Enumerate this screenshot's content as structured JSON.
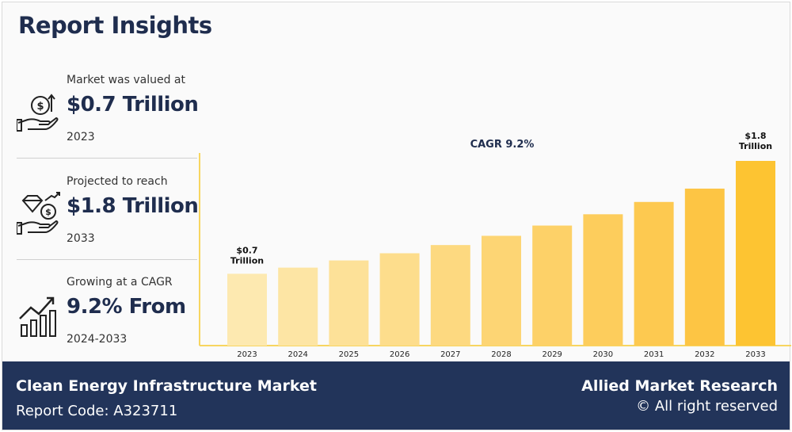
{
  "title": "Report Insights",
  "stats": [
    {
      "label": "Market was valued at",
      "value": "$0.7 Trillion",
      "year": "2023",
      "icon": "money-hand-icon"
    },
    {
      "label": "Projected to reach",
      "value": "$1.8 Trillion",
      "year": "2033",
      "icon": "diamond-coin-hand-icon"
    },
    {
      "label": "Growing at a CAGR",
      "value": "9.2% From",
      "year": "2024-2033",
      "icon": "growth-bars-icon"
    }
  ],
  "chart_data": {
    "type": "bar",
    "categories": [
      "2023",
      "2024",
      "2025",
      "2026",
      "2027",
      "2028",
      "2029",
      "2030",
      "2031",
      "2032",
      "2033"
    ],
    "values": [
      0.7,
      0.76,
      0.83,
      0.9,
      0.98,
      1.07,
      1.17,
      1.28,
      1.4,
      1.53,
      1.8
    ],
    "annotation": "CAGR 9.2%",
    "first_label": [
      "$0.7",
      "Trillion"
    ],
    "last_label": [
      "$1.8",
      "Trillion"
    ],
    "colors": [
      "#fde9b0",
      "#fde5a4",
      "#fde198",
      "#fddd8c",
      "#fdd980",
      "#fdd574",
      "#fdd168",
      "#fdcd5c",
      "#fdc950",
      "#fdc544",
      "#fdc432"
    ],
    "axis_color": "#f7d560"
  },
  "footer": {
    "market": "Clean Energy Infrastructure Market",
    "code": "Report Code: A323711",
    "brand": "Allied Market Research",
    "rights": "© All right reserved"
  }
}
